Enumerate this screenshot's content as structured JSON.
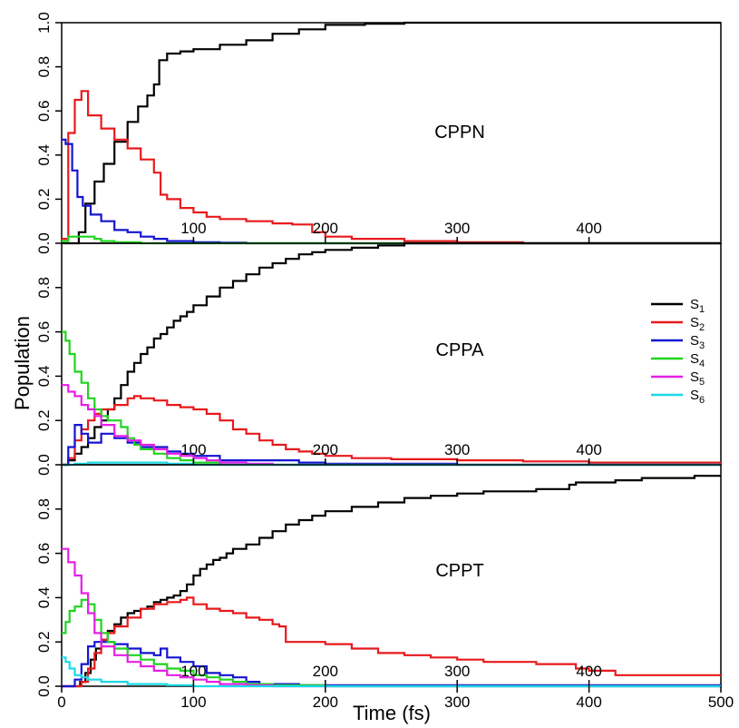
{
  "figure": {
    "ylabel": "Population",
    "xlabel": "Time (fs)",
    "colors": {
      "S1": "#000000",
      "S2": "#e8191c",
      "S3": "#1414d2",
      "S4": "#1fd41f",
      "S5": "#e61ee6",
      "S6": "#19d9e6"
    },
    "legend": {
      "placement": "right of middle panel",
      "entries": [
        {
          "base": "S",
          "sub": "1",
          "color": "#000000"
        },
        {
          "base": "S",
          "sub": "2",
          "color": "#e8191c"
        },
        {
          "base": "S",
          "sub": "3",
          "color": "#1414d2"
        },
        {
          "base": "S",
          "sub": "4",
          "color": "#1fd41f"
        },
        {
          "base": "S",
          "sub": "5",
          "color": "#e61ee6"
        },
        {
          "base": "S",
          "sub": "6",
          "color": "#19d9e6"
        }
      ]
    }
  },
  "chart_data": [
    {
      "type": "line",
      "label": "CPPN",
      "xlim": [
        0,
        500
      ],
      "ylim": [
        0,
        1
      ],
      "x_ticks": [
        "100",
        "200",
        "300",
        "400"
      ],
      "y_ticks": [
        "0.0",
        "0.2",
        "0.4",
        "0.6",
        "0.8",
        "1.0"
      ],
      "series": [
        {
          "key": "S1",
          "x": [
            0,
            8,
            13,
            18,
            25,
            32,
            40,
            50,
            58,
            65,
            70,
            74,
            80,
            90,
            100,
            120,
            140,
            160,
            180,
            200,
            230,
            260,
            300,
            350,
            400,
            500
          ],
          "y": [
            0,
            0,
            0.05,
            0.18,
            0.28,
            0.36,
            0.46,
            0.55,
            0.62,
            0.67,
            0.72,
            0.83,
            0.86,
            0.87,
            0.88,
            0.9,
            0.92,
            0.95,
            0.97,
            0.99,
            0.995,
            1,
            1,
            1,
            1,
            1
          ]
        },
        {
          "key": "S2",
          "x": [
            0,
            5,
            10,
            15,
            20,
            30,
            40,
            50,
            60,
            70,
            75,
            80,
            90,
            100,
            110,
            120,
            140,
            160,
            175,
            190,
            200,
            220,
            260,
            300,
            350,
            400,
            500
          ],
          "y": [
            0.02,
            0.5,
            0.65,
            0.69,
            0.58,
            0.52,
            0.47,
            0.43,
            0.38,
            0.32,
            0.22,
            0.2,
            0.16,
            0.14,
            0.12,
            0.11,
            0.1,
            0.09,
            0.085,
            0.05,
            0.03,
            0.02,
            0.01,
            0.005,
            0,
            0,
            0
          ]
        },
        {
          "key": "S3",
          "x": [
            0,
            3,
            8,
            12,
            16,
            22,
            30,
            40,
            50,
            60,
            70,
            80,
            90,
            100,
            120,
            140,
            160,
            200,
            300,
            500
          ],
          "y": [
            0.47,
            0.45,
            0.33,
            0.21,
            0.17,
            0.13,
            0.1,
            0.06,
            0.05,
            0.03,
            0.02,
            0.01,
            0.01,
            0.005,
            0.003,
            0,
            0,
            0,
            0,
            0
          ],
          "dx": 0
        },
        {
          "key": "S4",
          "x": [
            0,
            5,
            10,
            15,
            20,
            25,
            30,
            40,
            60,
            100,
            500
          ],
          "y": [
            0.01,
            0.03,
            0.03,
            0.03,
            0.03,
            0.02,
            0.01,
            0.005,
            0,
            0,
            0
          ]
        }
      ]
    },
    {
      "type": "line",
      "label": "CPPA",
      "xlim": [
        0,
        500
      ],
      "ylim": [
        0,
        1
      ],
      "x_ticks": [
        "100",
        "200",
        "300",
        "400"
      ],
      "y_ticks": [
        "0.0",
        "0.2",
        "0.4",
        "0.6",
        "0.8"
      ],
      "series": [
        {
          "key": "S1",
          "x": [
            0,
            5,
            10,
            15,
            20,
            25,
            30,
            35,
            40,
            45,
            50,
            55,
            60,
            65,
            70,
            75,
            80,
            85,
            90,
            95,
            100,
            110,
            120,
            130,
            140,
            150,
            160,
            170,
            180,
            190,
            200,
            220,
            240,
            260,
            300,
            350,
            400,
            500
          ],
          "y": [
            0,
            0.02,
            0.05,
            0.08,
            0.12,
            0.17,
            0.2,
            0.25,
            0.3,
            0.36,
            0.42,
            0.46,
            0.5,
            0.53,
            0.57,
            0.59,
            0.62,
            0.65,
            0.67,
            0.69,
            0.72,
            0.76,
            0.8,
            0.83,
            0.86,
            0.89,
            0.91,
            0.93,
            0.95,
            0.96,
            0.97,
            0.98,
            0.99,
            1,
            1,
            1,
            1,
            1
          ]
        },
        {
          "key": "S2",
          "x": [
            0,
            5,
            10,
            15,
            20,
            25,
            30,
            40,
            50,
            55,
            60,
            70,
            80,
            90,
            100,
            110,
            120,
            130,
            140,
            150,
            160,
            170,
            180,
            190,
            200,
            220,
            250,
            300,
            350,
            400,
            500
          ],
          "y": [
            0,
            0.03,
            0.11,
            0.16,
            0.2,
            0.23,
            0.25,
            0.27,
            0.3,
            0.31,
            0.3,
            0.29,
            0.27,
            0.26,
            0.25,
            0.23,
            0.2,
            0.16,
            0.14,
            0.11,
            0.09,
            0.07,
            0.06,
            0.05,
            0.04,
            0.03,
            0.025,
            0.02,
            0.015,
            0.01,
            0.01
          ]
        },
        {
          "key": "S3",
          "x": [
            0,
            5,
            10,
            15,
            20,
            30,
            40,
            50,
            60,
            70,
            80,
            90,
            100,
            120,
            140,
            160,
            180,
            200,
            300,
            500
          ],
          "y": [
            0,
            0.08,
            0.18,
            0.14,
            0.1,
            0.14,
            0.12,
            0.1,
            0.08,
            0.08,
            0.06,
            0.05,
            0.04,
            0.02,
            0.02,
            0.02,
            0.01,
            0.005,
            0,
            0
          ]
        },
        {
          "key": "S4",
          "x": [
            0,
            3,
            6,
            10,
            15,
            20,
            25,
            30,
            35,
            40,
            45,
            50,
            55,
            60,
            70,
            80,
            90,
            100,
            110,
            120,
            140,
            160,
            200,
            300,
            500
          ],
          "y": [
            0.6,
            0.56,
            0.5,
            0.42,
            0.37,
            0.3,
            0.25,
            0.22,
            0.2,
            0.2,
            0.17,
            0.12,
            0.09,
            0.07,
            0.05,
            0.03,
            0.02,
            0.01,
            0.01,
            0,
            0,
            0,
            0,
            0,
            0
          ]
        },
        {
          "key": "S5",
          "x": [
            0,
            5,
            10,
            15,
            20,
            25,
            30,
            40,
            50,
            60,
            70,
            80,
            90,
            100,
            110,
            120,
            140,
            160,
            200,
            300,
            500
          ],
          "y": [
            0.36,
            0.33,
            0.31,
            0.27,
            0.25,
            0.22,
            0.18,
            0.13,
            0.11,
            0.09,
            0.07,
            0.05,
            0.04,
            0.03,
            0.02,
            0.01,
            0.005,
            0,
            0,
            0,
            0
          ]
        },
        {
          "key": "S6",
          "x": [
            0,
            10,
            20,
            30,
            40,
            50,
            60,
            80,
            100,
            150,
            200,
            500
          ],
          "y": [
            0,
            0.005,
            0.01,
            0.01,
            0.01,
            0.01,
            0.01,
            0.005,
            0,
            0,
            0,
            0
          ]
        }
      ]
    },
    {
      "type": "line",
      "label": "CPPT",
      "xlim": [
        0,
        500
      ],
      "ylim": [
        0,
        1
      ],
      "x_ticks": [
        "0",
        "100",
        "200",
        "300",
        "400",
        "500"
      ],
      "x_ticks_inner": [
        "100",
        "200",
        "300",
        "400"
      ],
      "y_ticks": [
        "0.0",
        "0.2",
        "0.4",
        "0.6",
        "0.8"
      ],
      "series": [
        {
          "key": "S1",
          "x": [
            0,
            10,
            14,
            18,
            22,
            26,
            30,
            35,
            40,
            45,
            50,
            55,
            60,
            65,
            70,
            75,
            80,
            85,
            90,
            95,
            100,
            105,
            110,
            115,
            120,
            125,
            130,
            140,
            150,
            160,
            170,
            180,
            190,
            200,
            220,
            240,
            260,
            280,
            300,
            320,
            340,
            360,
            380,
            385,
            390,
            400,
            420,
            440,
            460,
            480,
            500
          ],
          "y": [
            0,
            0,
            0.02,
            0.06,
            0.12,
            0.17,
            0.21,
            0.25,
            0.28,
            0.31,
            0.33,
            0.34,
            0.35,
            0.36,
            0.38,
            0.39,
            0.4,
            0.41,
            0.43,
            0.46,
            0.5,
            0.53,
            0.55,
            0.57,
            0.58,
            0.6,
            0.62,
            0.64,
            0.67,
            0.7,
            0.73,
            0.75,
            0.77,
            0.79,
            0.81,
            0.83,
            0.85,
            0.86,
            0.87,
            0.88,
            0.88,
            0.89,
            0.89,
            0.91,
            0.92,
            0.92,
            0.93,
            0.94,
            0.94,
            0.95,
            0.95
          ]
        },
        {
          "key": "S2",
          "x": [
            0,
            10,
            15,
            20,
            25,
            30,
            35,
            40,
            50,
            60,
            70,
            80,
            90,
            95,
            100,
            110,
            120,
            130,
            140,
            150,
            160,
            165,
            170,
            180,
            200,
            220,
            240,
            260,
            280,
            300,
            320,
            340,
            360,
            380,
            385,
            390,
            400,
            420,
            440,
            460,
            480,
            500
          ],
          "y": [
            0,
            0,
            0.02,
            0.08,
            0.15,
            0.21,
            0.24,
            0.27,
            0.31,
            0.35,
            0.37,
            0.38,
            0.39,
            0.4,
            0.37,
            0.35,
            0.34,
            0.33,
            0.31,
            0.3,
            0.28,
            0.27,
            0.2,
            0.2,
            0.19,
            0.17,
            0.15,
            0.14,
            0.13,
            0.12,
            0.11,
            0.11,
            0.1,
            0.1,
            0.1,
            0.08,
            0.07,
            0.05,
            0.05,
            0.05,
            0.05,
            0.05
          ]
        },
        {
          "key": "S3",
          "x": [
            0,
            10,
            15,
            20,
            25,
            30,
            40,
            50,
            60,
            70,
            75,
            80,
            90,
            100,
            110,
            120,
            130,
            140,
            150,
            160,
            180,
            200,
            300,
            500
          ],
          "y": [
            0,
            0.03,
            0.1,
            0.18,
            0.2,
            0.2,
            0.19,
            0.17,
            0.15,
            0.14,
            0.17,
            0.13,
            0.11,
            0.09,
            0.06,
            0.05,
            0.04,
            0.02,
            0.01,
            0.01,
            0.005,
            0.005,
            0.005,
            0
          ]
        },
        {
          "key": "S4",
          "x": [
            0,
            3,
            6,
            10,
            15,
            20,
            25,
            30,
            35,
            40,
            50,
            60,
            70,
            80,
            90,
            100,
            110,
            120,
            130,
            140,
            160,
            200,
            300,
            500
          ],
          "y": [
            0.24,
            0.29,
            0.34,
            0.36,
            0.39,
            0.37,
            0.3,
            0.24,
            0.2,
            0.17,
            0.14,
            0.12,
            0.1,
            0.08,
            0.07,
            0.05,
            0.04,
            0.03,
            0.02,
            0.01,
            0.005,
            0,
            0,
            0
          ]
        },
        {
          "key": "S5",
          "x": [
            0,
            5,
            10,
            15,
            20,
            25,
            30,
            40,
            50,
            60,
            70,
            80,
            90,
            100,
            110,
            120,
            140,
            160,
            200,
            300,
            500
          ],
          "y": [
            0.62,
            0.56,
            0.5,
            0.42,
            0.33,
            0.24,
            0.18,
            0.14,
            0.11,
            0.09,
            0.07,
            0.05,
            0.04,
            0.03,
            0.02,
            0.01,
            0.005,
            0,
            0,
            0,
            0
          ]
        },
        {
          "key": "S6",
          "x": [
            0,
            3,
            6,
            10,
            15,
            20,
            25,
            30,
            40,
            50,
            60,
            80,
            100,
            150,
            500
          ],
          "y": [
            0.13,
            0.11,
            0.08,
            0.05,
            0.04,
            0.03,
            0.03,
            0.02,
            0.02,
            0.01,
            0.01,
            0.005,
            0,
            0,
            0
          ]
        }
      ]
    }
  ]
}
